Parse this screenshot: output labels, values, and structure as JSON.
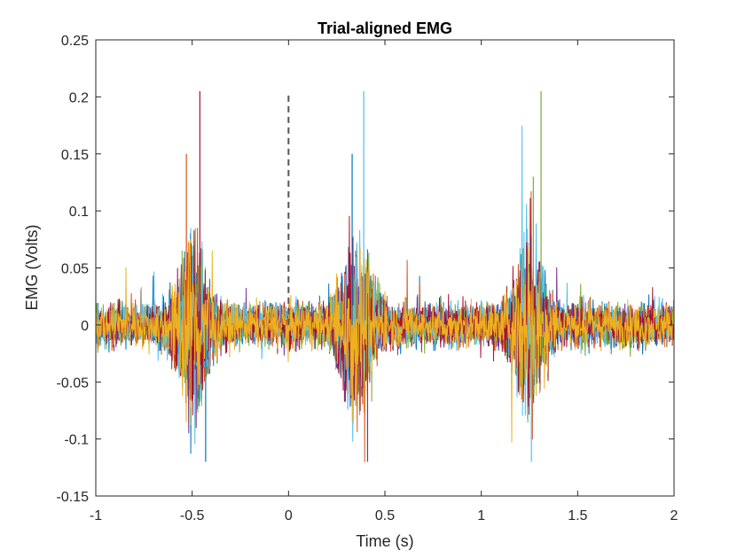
{
  "chart_data": {
    "type": "line",
    "title": "Trial-aligned EMG",
    "xlabel": "Time (s)",
    "ylabel": "EMG (Volts)",
    "xlim": [
      -1,
      2
    ],
    "ylim": [
      -0.15,
      0.25
    ],
    "xticks": [
      -1,
      -0.5,
      0,
      0.5,
      1,
      1.5,
      2
    ],
    "xtick_labels": [
      "-1",
      "-0.5",
      "0",
      "0.5",
      "1",
      "1.5",
      "2"
    ],
    "yticks": [
      -0.15,
      -0.1,
      -0.05,
      0,
      0.05,
      0.1,
      0.15,
      0.2,
      0.25
    ],
    "ytick_labels": [
      "-0.15",
      "-0.1",
      "-0.05",
      "0",
      "0.05",
      "0.1",
      "0.15",
      "0.2",
      "0.25"
    ],
    "grid": false,
    "legend": "none",
    "event_marker": {
      "x": 0,
      "y_range": [
        0,
        0.205
      ],
      "style": "dashed",
      "color": "#555555"
    },
    "baseline_noise_amplitude": 0.02,
    "bursts": [
      {
        "center": -0.5,
        "peak_max": 0.205,
        "trough_min": -0.12
      },
      {
        "center": 0.35,
        "peak_max": 0.205,
        "trough_min": -0.12
      },
      {
        "center": 1.25,
        "peak_max": 0.205,
        "trough_min": -0.12
      }
    ],
    "series_count": 7,
    "series_colors": [
      "#0072BD",
      "#D95319",
      "#7E2F8E",
      "#77AC30",
      "#4DBEEE",
      "#A2142F",
      "#EDB120"
    ]
  }
}
